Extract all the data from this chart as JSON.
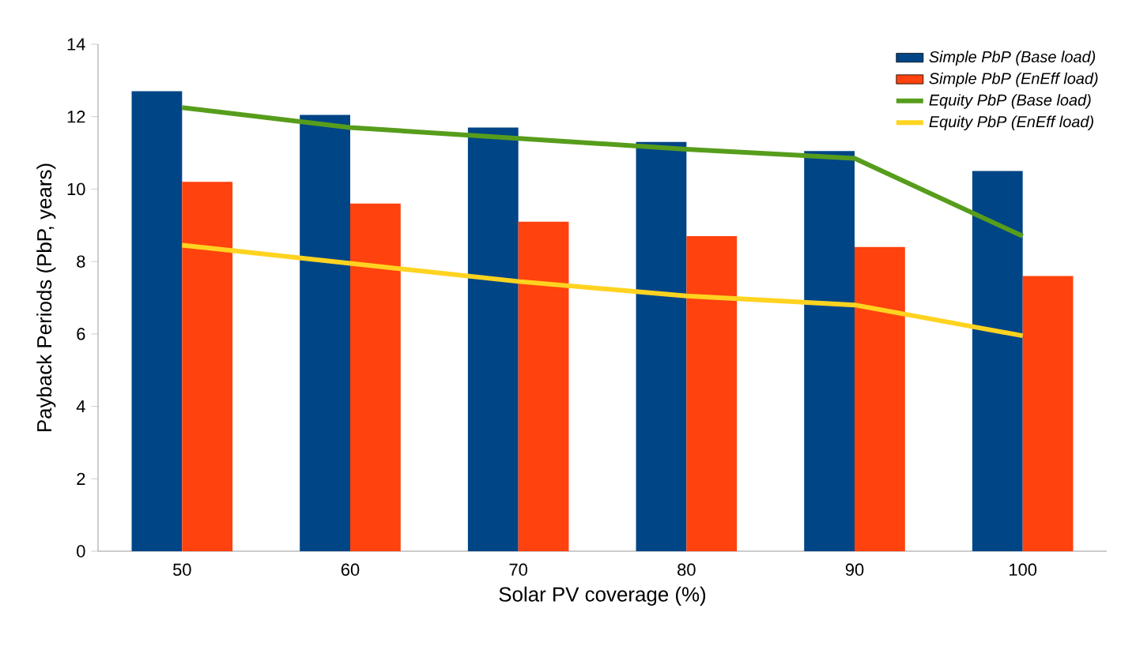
{
  "chart_data": {
    "type": "bar",
    "xlabel": "Solar PV coverage (%)",
    "ylabel": "Payback Periods (PbP, years)",
    "categories": [
      "50",
      "60",
      "70",
      "80",
      "90",
      "100"
    ],
    "series": [
      {
        "name": "Simple PbP (Base load)",
        "color": "#004586",
        "values": [
          12.7,
          12.05,
          11.7,
          11.3,
          11.05,
          10.5
        ]
      },
      {
        "name": "Simple PbP (EnEff load)",
        "color": "#ff420e",
        "values": [
          10.2,
          9.6,
          9.1,
          8.7,
          8.4,
          7.6
        ]
      },
      {
        "name": "Equity PbP (Base load)",
        "type": "line",
        "color": "#579d1c",
        "values": [
          12.25,
          11.7,
          11.4,
          11.1,
          10.85,
          8.7
        ]
      },
      {
        "name": "Equity PbP (EnEff load)",
        "type": "line",
        "color": "#ffd320",
        "values": [
          8.45,
          7.95,
          7.45,
          7.05,
          6.8,
          5.95
        ]
      }
    ],
    "ylim": [
      0,
      14
    ],
    "yticks": [
      0,
      2,
      4,
      6,
      8,
      10,
      12,
      14
    ],
    "grid": false,
    "legend": "top right"
  }
}
